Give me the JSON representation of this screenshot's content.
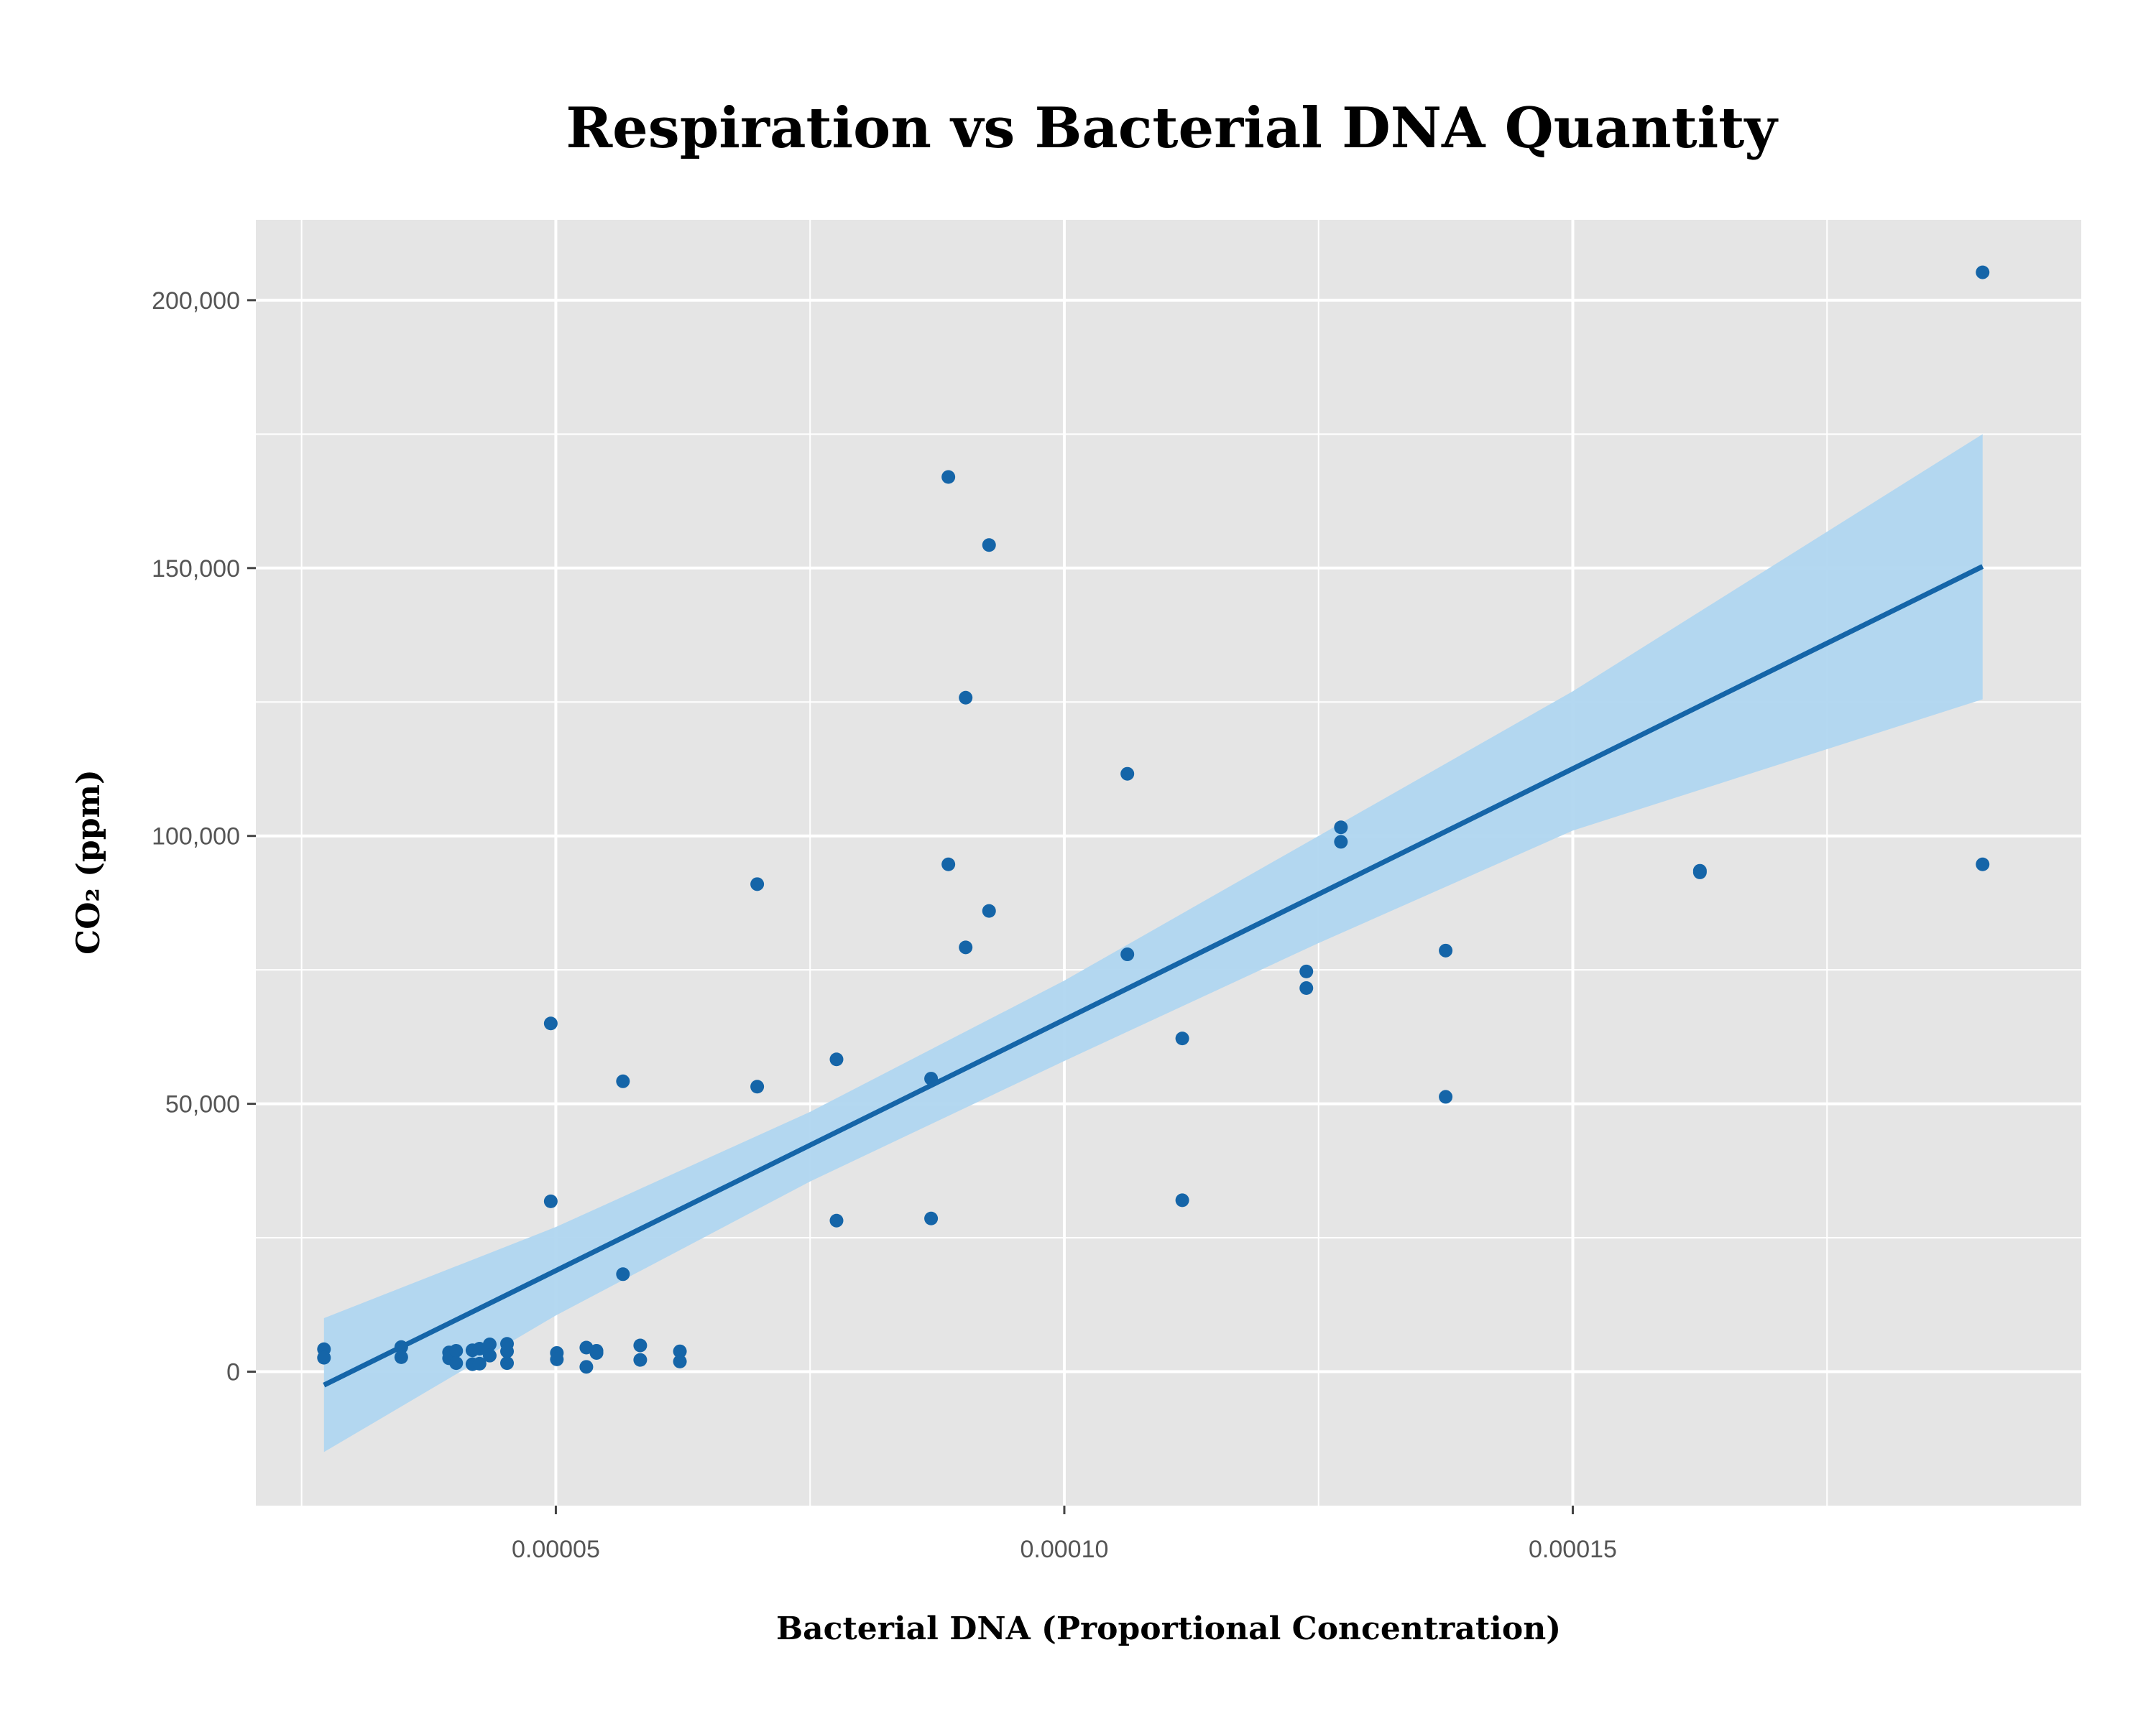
{
  "chart_data": {
    "type": "scatter",
    "title": "Respiration vs Bacterial DNA Quantity",
    "xlabel": "Bacterial DNA (Proportional Concentration)",
    "ylabel": "CO₂ (ppm)",
    "xlim": [
      2.05e-05,
      0.0002
    ],
    "ylim": [
      -25000,
      215000
    ],
    "x_ticks": [
      {
        "value": 5e-05,
        "label": "0.00005"
      },
      {
        "value": 0.0001,
        "label": "0.00010"
      },
      {
        "value": 0.00015,
        "label": "0.00015"
      }
    ],
    "y_ticks": [
      {
        "value": 0,
        "label": "0"
      },
      {
        "value": 50000,
        "label": "50,000"
      },
      {
        "value": 100000,
        "label": "100,000"
      },
      {
        "value": 150000,
        "label": "150,000"
      },
      {
        "value": 200000,
        "label": "200,000"
      }
    ],
    "x_minor_ticks": [
      2.5e-05,
      7.5e-05,
      0.000125,
      0.000175
    ],
    "y_minor_ticks": [
      25000,
      75000,
      125000,
      175000
    ],
    "grid": true,
    "colors": {
      "panel": "#e5e5e5",
      "grid": "#ffffff",
      "points": "#1565a8",
      "line": "#1565a8",
      "band": "#b0d6f0"
    },
    "points": [
      {
        "x": 2.72e-05,
        "y": 4200
      },
      {
        "x": 2.72e-05,
        "y": 2600
      },
      {
        "x": 3.48e-05,
        "y": 4600
      },
      {
        "x": 3.48e-05,
        "y": 2700
      },
      {
        "x": 3.95e-05,
        "y": 3600
      },
      {
        "x": 3.95e-05,
        "y": 2500
      },
      {
        "x": 4.02e-05,
        "y": 3900
      },
      {
        "x": 4.02e-05,
        "y": 1600
      },
      {
        "x": 4.18e-05,
        "y": 4000
      },
      {
        "x": 4.18e-05,
        "y": 1400
      },
      {
        "x": 4.25e-05,
        "y": 4300
      },
      {
        "x": 4.25e-05,
        "y": 1500
      },
      {
        "x": 4.35e-05,
        "y": 5100
      },
      {
        "x": 4.35e-05,
        "y": 3000
      },
      {
        "x": 4.52e-05,
        "y": 5200
      },
      {
        "x": 4.52e-05,
        "y": 1600
      },
      {
        "x": 4.52e-05,
        "y": 3800
      },
      {
        "x": 4.95e-05,
        "y": 65000
      },
      {
        "x": 4.95e-05,
        "y": 31800
      },
      {
        "x": 5.01e-05,
        "y": 3500
      },
      {
        "x": 5.01e-05,
        "y": 2300
      },
      {
        "x": 5.3e-05,
        "y": 4500
      },
      {
        "x": 5.3e-05,
        "y": 900
      },
      {
        "x": 5.4e-05,
        "y": 3900
      },
      {
        "x": 5.4e-05,
        "y": 3500
      },
      {
        "x": 5.66e-05,
        "y": 54200
      },
      {
        "x": 5.66e-05,
        "y": 18200
      },
      {
        "x": 5.83e-05,
        "y": 4900
      },
      {
        "x": 5.83e-05,
        "y": 2200
      },
      {
        "x": 6.22e-05,
        "y": 3800
      },
      {
        "x": 6.22e-05,
        "y": 1900
      },
      {
        "x": 6.98e-05,
        "y": 91000
      },
      {
        "x": 6.98e-05,
        "y": 53200
      },
      {
        "x": 7.76e-05,
        "y": 58300
      },
      {
        "x": 7.76e-05,
        "y": 28200
      },
      {
        "x": 8.69e-05,
        "y": 54700
      },
      {
        "x": 8.69e-05,
        "y": 28600
      },
      {
        "x": 8.86e-05,
        "y": 167000
      },
      {
        "x": 8.86e-05,
        "y": 94700
      },
      {
        "x": 9.03e-05,
        "y": 125800
      },
      {
        "x": 9.03e-05,
        "y": 79200
      },
      {
        "x": 9.26e-05,
        "y": 154300
      },
      {
        "x": 9.26e-05,
        "y": 86000
      },
      {
        "x": 0.0001062,
        "y": 111600
      },
      {
        "x": 0.0001062,
        "y": 77900
      },
      {
        "x": 0.0001116,
        "y": 62200
      },
      {
        "x": 0.0001116,
        "y": 32000
      },
      {
        "x": 0.0001238,
        "y": 74700
      },
      {
        "x": 0.0001238,
        "y": 71600
      },
      {
        "x": 0.0001272,
        "y": 101600
      },
      {
        "x": 0.0001272,
        "y": 98900
      },
      {
        "x": 0.0001375,
        "y": 78600
      },
      {
        "x": 0.0001375,
        "y": 51300
      },
      {
        "x": 0.0001625,
        "y": 93500
      },
      {
        "x": 0.0001625,
        "y": 93200
      },
      {
        "x": 0.0001903,
        "y": 205200
      },
      {
        "x": 0.0001903,
        "y": 94700
      }
    ],
    "fit": {
      "start": {
        "x": 2.72e-05,
        "y": -2500
      },
      "end": {
        "x": 0.0001903,
        "y": 150300
      },
      "band": [
        {
          "x": 2.72e-05,
          "lower": -15000,
          "upper": 10000
        },
        {
          "x": 5e-05,
          "lower": 10500,
          "upper": 27000
        },
        {
          "x": 7.5e-05,
          "lower": 35500,
          "upper": 48500
        },
        {
          "x": 0.0001,
          "lower": 58000,
          "upper": 73000
        },
        {
          "x": 0.000125,
          "lower": 80000,
          "upper": 100000
        },
        {
          "x": 0.00015,
          "lower": 101000,
          "upper": 127000
        },
        {
          "x": 0.0001903,
          "lower": 125500,
          "upper": 175000
        }
      ]
    }
  }
}
